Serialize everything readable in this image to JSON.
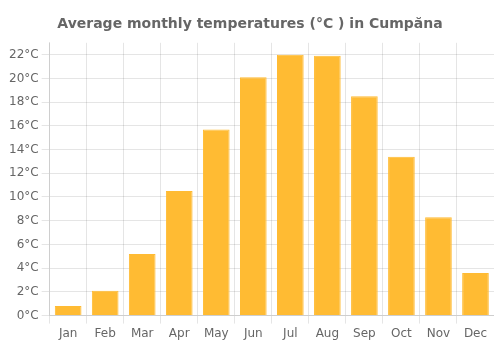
{
  "chart_data": {
    "type": "bar",
    "title": "Average monthly temperatures (°C ) in Cumpăna",
    "categories": [
      "Jan",
      "Feb",
      "Mar",
      "Apr",
      "May",
      "Jun",
      "Jul",
      "Aug",
      "Sep",
      "Oct",
      "Nov",
      "Dec"
    ],
    "values": [
      0.8,
      2.1,
      5.2,
      10.5,
      15.7,
      20.1,
      22.0,
      21.9,
      18.5,
      13.4,
      8.3,
      3.6
    ],
    "color": "#FFBB33",
    "ylim": [
      0,
      23
    ],
    "yticks": [
      {
        "value": 0,
        "label": "0°C"
      },
      {
        "value": 2,
        "label": "2°C"
      },
      {
        "value": 4,
        "label": "4°C"
      },
      {
        "value": 6,
        "label": "6°C"
      },
      {
        "value": 8,
        "label": "8°C"
      },
      {
        "value": 10,
        "label": "10°C"
      },
      {
        "value": 12,
        "label": "12°C"
      },
      {
        "value": 14,
        "label": "14°C"
      },
      {
        "value": 16,
        "label": "16°C"
      },
      {
        "value": 18,
        "label": "18°C"
      },
      {
        "value": 20,
        "label": "20°C"
      },
      {
        "value": 22,
        "label": "22°C"
      }
    ],
    "grid": true
  }
}
